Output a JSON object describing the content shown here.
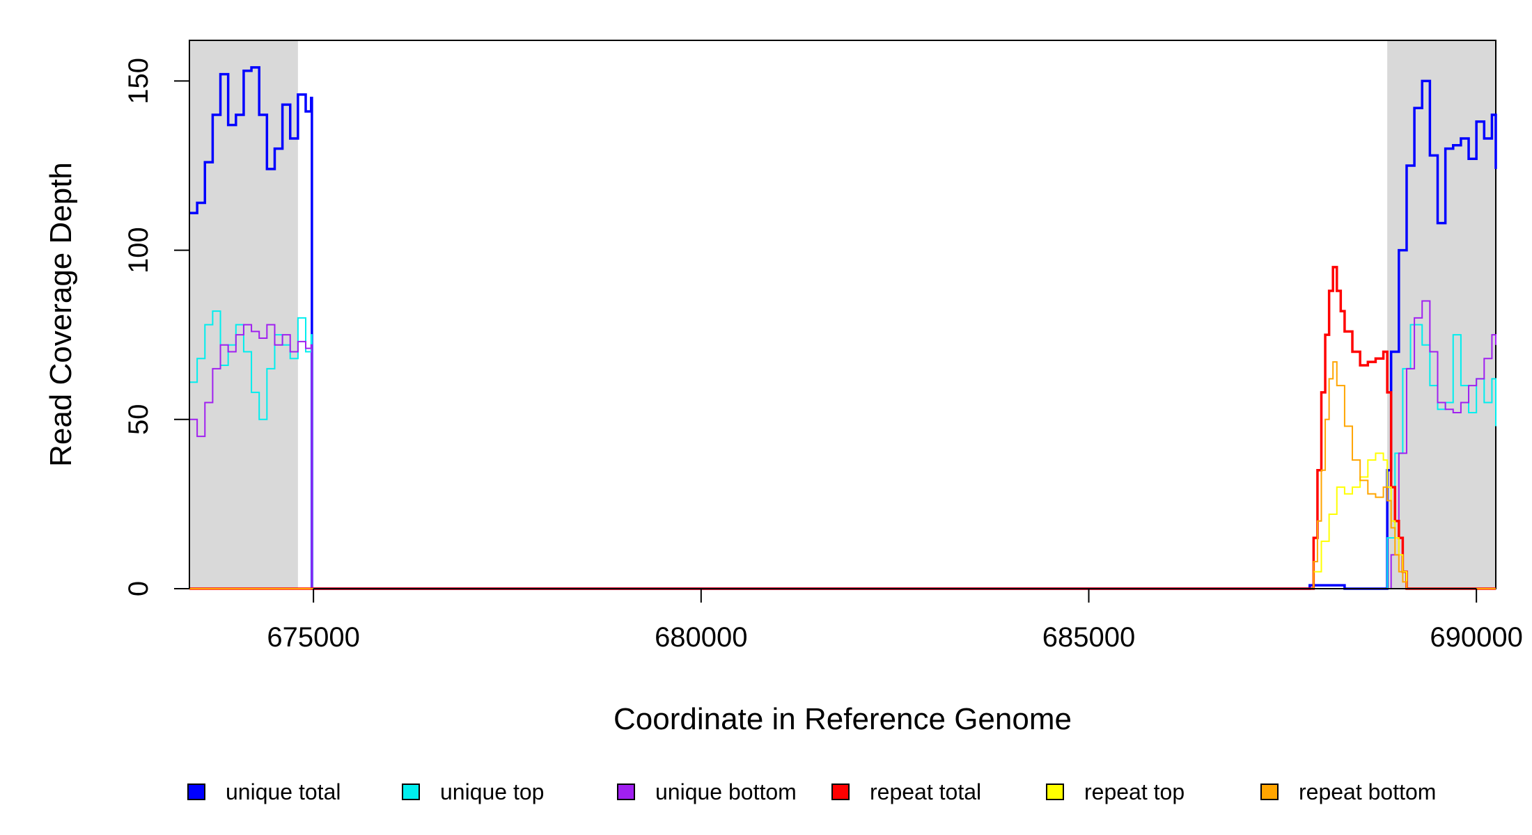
{
  "chart_data": {
    "type": "line",
    "xlabel": "Coordinate in Reference Genome",
    "ylabel": "Read Coverage Depth",
    "xlim": [
      673400,
      690250
    ],
    "ylim": [
      0,
      162
    ],
    "x_ticks": [
      675000,
      680000,
      685000,
      690000
    ],
    "x_tick_labels": [
      "675000",
      "680000",
      "685000",
      "690000"
    ],
    "y_ticks": [
      0,
      50,
      100,
      150
    ],
    "y_tick_labels": [
      "0",
      "50",
      "100",
      "150"
    ],
    "grid": false,
    "legend_placement": "bottom",
    "shaded_regions": [
      {
        "start": 673400,
        "end": 674800
      },
      {
        "start": 688850,
        "end": 690250
      }
    ],
    "series": [
      {
        "name": "unique total",
        "color": "#0000ff",
        "x": [
          673400,
          673500,
          673600,
          673700,
          673800,
          673900,
          674000,
          674100,
          674200,
          674300,
          674400,
          674500,
          674600,
          674700,
          674800,
          674900,
          674970,
          674980,
          687850,
          688000,
          688150,
          688300,
          688800,
          688850,
          688900,
          689000,
          689100,
          689200,
          689300,
          689400,
          689500,
          689600,
          689700,
          689800,
          689900,
          690000,
          690100,
          690200,
          690250
        ],
        "y": [
          111,
          114,
          126,
          140,
          152,
          137,
          140,
          153,
          154,
          140,
          124,
          130,
          143,
          133,
          146,
          141,
          145,
          0,
          1,
          1,
          1,
          0,
          0,
          35,
          70,
          100,
          125,
          142,
          150,
          128,
          108,
          130,
          131,
          133,
          127,
          138,
          133,
          140,
          124
        ]
      },
      {
        "name": "unique top",
        "color": "#00eeee",
        "x": [
          673400,
          673500,
          673600,
          673700,
          673800,
          673900,
          674000,
          674100,
          674200,
          674300,
          674400,
          674500,
          674600,
          674700,
          674800,
          674900,
          674970,
          674980,
          688850,
          688950,
          689050,
          689150,
          689300,
          689400,
          689500,
          689600,
          689700,
          689800,
          689900,
          690000,
          690100,
          690200,
          690250
        ],
        "y": [
          61,
          68,
          78,
          82,
          66,
          72,
          78,
          70,
          58,
          50,
          65,
          75,
          72,
          68,
          80,
          70,
          75,
          0,
          15,
          40,
          65,
          78,
          72,
          60,
          53,
          55,
          75,
          60,
          52,
          62,
          55,
          62,
          48
        ]
      },
      {
        "name": "unique bottom",
        "color": "#a020f0",
        "x": [
          673400,
          673500,
          673600,
          673700,
          673800,
          673900,
          674000,
          674100,
          674200,
          674300,
          674400,
          674500,
          674600,
          674700,
          674800,
          674900,
          674970,
          674980,
          688800,
          688900,
          689000,
          689100,
          689200,
          689300,
          689400,
          689500,
          689600,
          689700,
          689800,
          689900,
          690000,
          690100,
          690200,
          690250
        ],
        "y": [
          50,
          45,
          55,
          65,
          72,
          70,
          75,
          78,
          76,
          74,
          78,
          72,
          75,
          70,
          73,
          71,
          72,
          0,
          0,
          10,
          40,
          65,
          80,
          85,
          70,
          55,
          53,
          52,
          55,
          60,
          62,
          68,
          75,
          72
        ]
      },
      {
        "name": "repeat total",
        "color": "#ff0000",
        "x": [
          673400,
          687850,
          687900,
          687950,
          688000,
          688050,
          688100,
          688150,
          688200,
          688250,
          688300,
          688400,
          688500,
          688600,
          688700,
          688800,
          688850,
          688900,
          688950,
          689000,
          689050,
          689100,
          689150,
          690250
        ],
        "y": [
          0,
          0,
          15,
          35,
          58,
          75,
          88,
          95,
          88,
          82,
          76,
          70,
          66,
          67,
          68,
          70,
          58,
          30,
          20,
          15,
          5,
          0,
          0,
          0
        ]
      },
      {
        "name": "repeat top",
        "color": "#ffff00",
        "x": [
          673400,
          687850,
          687900,
          688000,
          688100,
          688200,
          688300,
          688400,
          688500,
          688600,
          688700,
          688800,
          688850,
          688900,
          688950,
          689000,
          689050,
          689100,
          690250
        ],
        "y": [
          0,
          0,
          5,
          14,
          22,
          30,
          28,
          30,
          33,
          38,
          40,
          38,
          30,
          20,
          15,
          10,
          5,
          0,
          0
        ]
      },
      {
        "name": "repeat bottom",
        "color": "#ffa500",
        "x": [
          673400,
          687850,
          687900,
          687950,
          688000,
          688050,
          688100,
          688150,
          688200,
          688300,
          688400,
          688500,
          688600,
          688700,
          688800,
          688850,
          688900,
          688950,
          689000,
          689050,
          689100,
          690250
        ],
        "y": [
          0,
          0,
          8,
          20,
          35,
          50,
          62,
          67,
          60,
          48,
          38,
          32,
          28,
          27,
          30,
          26,
          18,
          10,
          5,
          2,
          0,
          0
        ]
      }
    ]
  }
}
